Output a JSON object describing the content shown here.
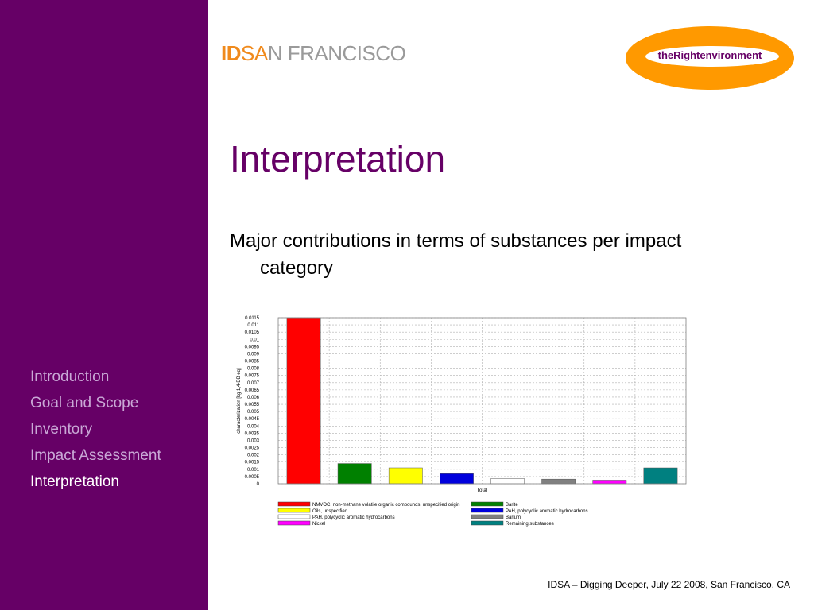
{
  "brand": {
    "part1": "ID",
    "part2": "SA",
    "part3": "N FRANCISCO"
  },
  "logo": {
    "text": "theRightenvironment",
    "oval_color": "#ff9900"
  },
  "title": "Interpretation",
  "subtitle": {
    "line1": "Major contributions in terms of substances per impact",
    "line2": "category"
  },
  "nav": [
    {
      "label": "Introduction",
      "active": false
    },
    {
      "label": "Goal and Scope",
      "active": false
    },
    {
      "label": "Inventory",
      "active": false
    },
    {
      "label": "Impact Assessment",
      "active": false
    },
    {
      "label": "Interpretation",
      "active": true
    }
  ],
  "footer": "IDSA – Digging Deeper, July 22 2008, San Francisco, CA",
  "colors": {
    "sidebar": "#660066",
    "accent": "#660066",
    "brand_orange": "#f08a1c"
  },
  "chart_data": {
    "type": "bar",
    "categories": [
      "Total"
    ],
    "ylabel": "characterization [kg 1,4-DB eq]",
    "ylim": [
      0,
      0.0115
    ],
    "yticks": [
      "0.0115",
      "0.011",
      "0.0105",
      "0.01",
      "0.0095",
      "0.009",
      "0.0085",
      "0.008",
      "0.0075",
      "0.007",
      "0.0065",
      "0.006",
      "0.0055",
      "0.005",
      "0.0045",
      "0.004",
      "0.0035",
      "0.003",
      "0.0025",
      "0.002",
      "0.0015",
      "0.001",
      "0.0005",
      "0"
    ],
    "grid": true,
    "series": [
      {
        "name": "NMVOC, non-methane volatile organic compounds, unspecified origin",
        "value": 0.0115,
        "color": "#ff0000"
      },
      {
        "name": "Barite",
        "value": 0.0014,
        "color": "#008000"
      },
      {
        "name": "Oils, unspecified",
        "value": 0.0011,
        "color": "#ffff00"
      },
      {
        "name": "PAH, polycyclic aromatic hydrocarbons",
        "value": 0.0007,
        "color": "#0000dd"
      },
      {
        "name": "PAH, polycyclic aromatic hydrocarbons",
        "value": 0.00035,
        "color": "#ffffff"
      },
      {
        "name": "Barium",
        "value": 0.00032,
        "color": "#808080"
      },
      {
        "name": "Nickel",
        "value": 0.00025,
        "color": "#ff00ff"
      },
      {
        "name": "Remaining substances",
        "value": 0.0011,
        "color": "#008080"
      }
    ],
    "legend_order": [
      0,
      1,
      2,
      3,
      4,
      5,
      6,
      7
    ],
    "legend_placement": "bottom"
  }
}
